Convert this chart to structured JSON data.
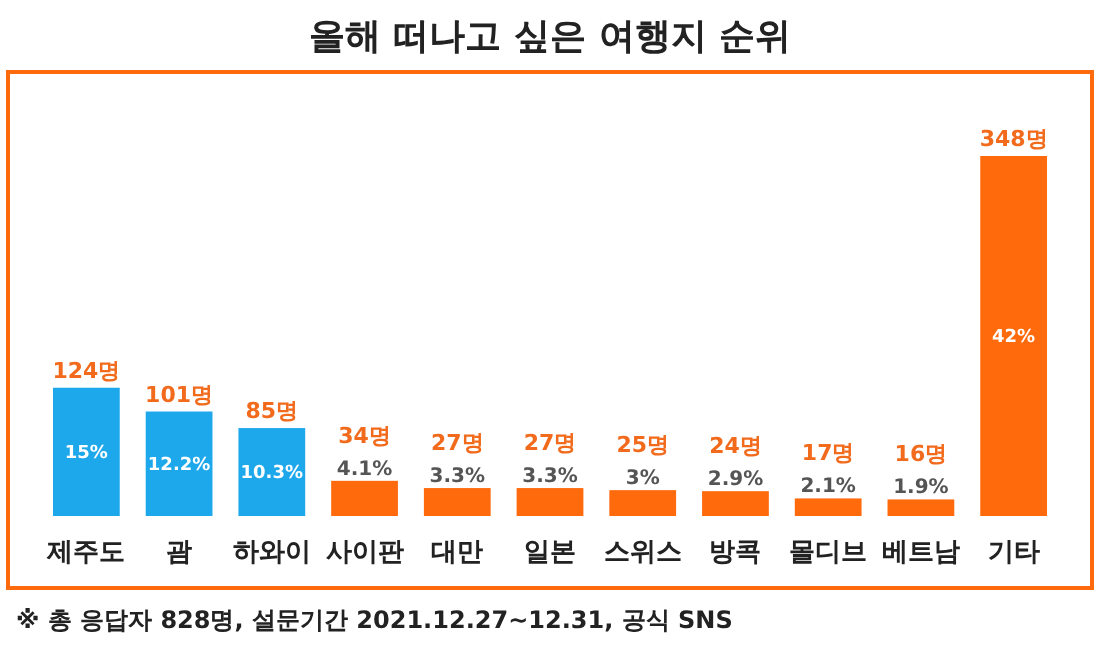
{
  "chart_data": {
    "type": "bar",
    "title": "올해 떠나고 싶은 여행지 순위",
    "categories": [
      "제주도",
      "괌",
      "하와이",
      "사이판",
      "대만",
      "일본",
      "스위스",
      "방콕",
      "몰디브",
      "베트남",
      "기타"
    ],
    "values": [
      124,
      101,
      85,
      34,
      27,
      27,
      25,
      24,
      17,
      16,
      348
    ],
    "colors": [
      "#1ea8ec",
      "#1ea8ec",
      "#1ea8ec",
      "#ff6a0d",
      "#ff6a0d",
      "#ff6a0d",
      "#ff6a0d",
      "#ff6a0d",
      "#ff6a0d",
      "#ff6a0d",
      "#ff6a0d"
    ],
    "value_labels": [
      "124명",
      "101명",
      "85명",
      "34명",
      "27명",
      "27명",
      "25명",
      "24명",
      "17명",
      "16명",
      "348명"
    ],
    "annotations": [
      "15%",
      "12.2%",
      "10.3%",
      "4.1%",
      "3.3%",
      "3.3%",
      "3%",
      "2.9%",
      "2.1%",
      "1.9%",
      "42%",
      "※ 총 응답자 828명, 설문기간 2021.12.27~12.31, 공식 SNS"
    ]
  }
}
